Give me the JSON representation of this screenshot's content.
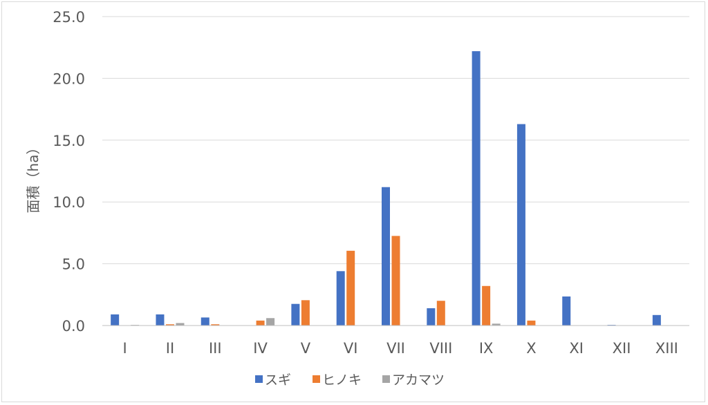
{
  "chart_data": {
    "type": "bar",
    "ylabel": "面積（ha）",
    "ylim": [
      0,
      25
    ],
    "yticks": [
      "0.0",
      "5.0",
      "10.0",
      "15.0",
      "20.0",
      "25.0"
    ],
    "ytick_values": [
      0,
      5,
      10,
      15,
      20,
      25
    ],
    "grid": true,
    "legend_position": "bottom",
    "categories": [
      "I",
      "II",
      "III",
      "IV",
      "V",
      "VI",
      "VII",
      "VIII",
      "IX",
      "X",
      "XI",
      "XII",
      "XIII"
    ],
    "series": [
      {
        "name": "スギ",
        "color": "#4472C4",
        "values": [
          0.9,
          0.9,
          0.65,
          0.0,
          1.75,
          4.4,
          11.2,
          1.4,
          22.2,
          16.3,
          2.35,
          0.05,
          0.85
        ]
      },
      {
        "name": "ヒノキ",
        "color": "#ED7D31",
        "values": [
          0.0,
          0.1,
          0.1,
          0.4,
          2.05,
          6.05,
          7.25,
          2.0,
          3.2,
          0.4,
          0.0,
          0.0,
          0.0
        ]
      },
      {
        "name": "アカマツ",
        "color": "#A5A5A5",
        "values": [
          0.05,
          0.2,
          0.0,
          0.6,
          0.0,
          0.0,
          0.0,
          0.0,
          0.15,
          0.0,
          0.0,
          0.0,
          0.0
        ]
      }
    ]
  }
}
